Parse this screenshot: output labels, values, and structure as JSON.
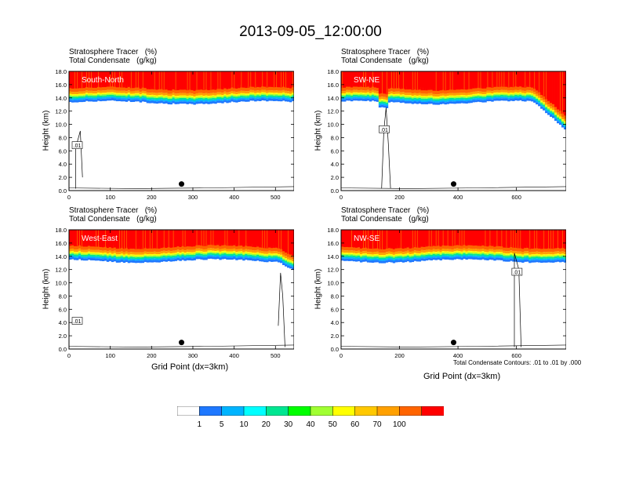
{
  "title": "2013-09-05_12:00:00",
  "panel_title_line1": "Stratosphere Tracer   (%)",
  "panel_title_line2": "Total Condensate   (g/kg)",
  "ylabel": "Height (km)",
  "xlabel": "Grid Point (dx=3km)",
  "contour_note": "Total Condensate Contours: .01 to .01 by .000",
  "contour_label": ".01",
  "colorbar": {
    "colors": [
      "#ffffff",
      "#1e78ff",
      "#00b4ff",
      "#00ffff",
      "#00e691",
      "#00ff00",
      "#a0ff32",
      "#ffff00",
      "#ffc800",
      "#ffa000",
      "#ff6400",
      "#ff0000"
    ],
    "labels": [
      "1",
      "5",
      "10",
      "20",
      "30",
      "40",
      "50",
      "60",
      "70",
      "100"
    ]
  },
  "chart_data": [
    {
      "type": "heatmap",
      "name": "South-North",
      "xlim": [
        0,
        545
      ],
      "ylim": [
        0,
        18
      ],
      "xticks": [
        "0",
        "100",
        "200",
        "300",
        "400",
        "500"
      ],
      "yticks": [
        "0.0",
        "2.0",
        "4.0",
        "6.0",
        "8.0",
        "10.0",
        "12.0",
        "14.0",
        "16.0",
        "18.0"
      ]
    },
    {
      "type": "heatmap",
      "name": "SW-NE",
      "xlim": [
        0,
        770
      ],
      "ylim": [
        0,
        18
      ],
      "xticks": [
        "0",
        "200",
        "400",
        "600"
      ],
      "yticks": [
        "0.0",
        "2.0",
        "4.0",
        "6.0",
        "8.0",
        "10.0",
        "12.0",
        "14.0",
        "16.0",
        "18.0"
      ]
    },
    {
      "type": "heatmap",
      "name": "West-East",
      "xlim": [
        0,
        545
      ],
      "ylim": [
        0,
        18
      ],
      "xticks": [
        "0",
        "100",
        "200",
        "300",
        "400",
        "500"
      ],
      "yticks": [
        "0.0",
        "2.0",
        "4.0",
        "6.0",
        "8.0",
        "10.0",
        "12.0",
        "14.0",
        "16.0",
        "18.0"
      ]
    },
    {
      "type": "heatmap",
      "name": "NW-SE",
      "xlim": [
        0,
        770
      ],
      "ylim": [
        0,
        18
      ],
      "xticks": [
        "0",
        "200",
        "400",
        "600"
      ],
      "yticks": [
        "0.0",
        "2.0",
        "4.0",
        "6.0",
        "8.0",
        "10.0",
        "12.0",
        "14.0",
        "16.0",
        "18.0"
      ]
    }
  ]
}
